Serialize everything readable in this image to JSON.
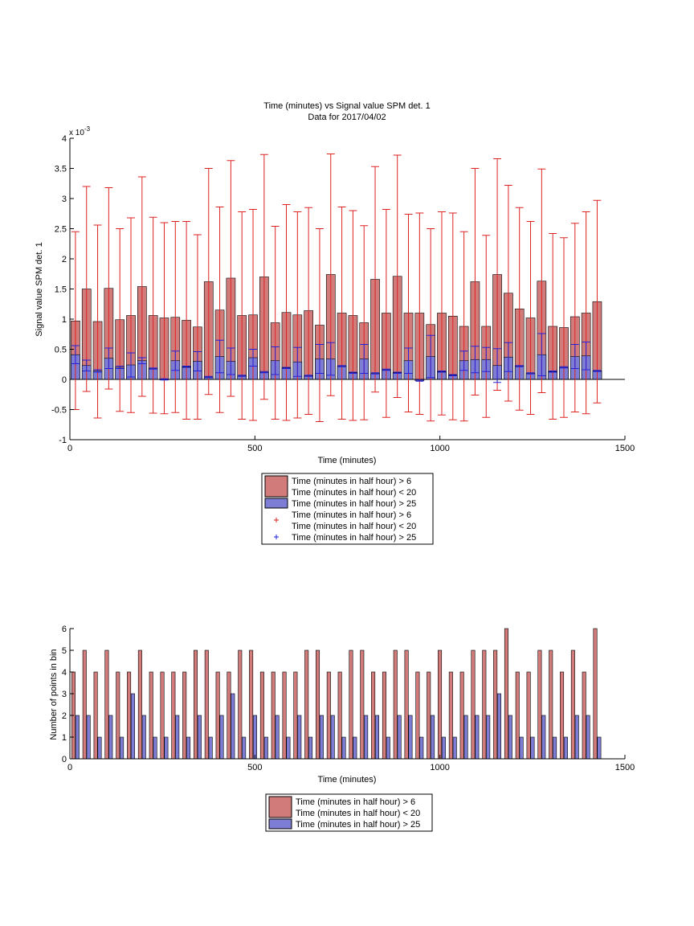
{
  "chart_data": [
    {
      "type": "bar",
      "title": "Time (minutes) vs Signal value SPM det. 1",
      "subtitle": "Data for 2017/04/02",
      "xlabel": "Time (minutes)",
      "ylabel": "Signal value SPM det. 1",
      "y_exponent_label": "x 10",
      "y_exponent_power": "-3",
      "xlim": [
        0,
        1500
      ],
      "ylim": [
        -0.001,
        0.004
      ],
      "xticks": [
        "0",
        "500",
        "1000",
        "1500"
      ],
      "yticks": [
        "-1",
        "-0.5",
        "0",
        "0.5",
        "1",
        "1.5",
        "2",
        "2.5",
        "3",
        "3.5",
        "4"
      ],
      "grid": false,
      "legend_position": "below",
      "x": [
        15,
        45,
        75,
        105,
        135,
        165,
        195,
        225,
        255,
        285,
        315,
        345,
        375,
        405,
        435,
        465,
        495,
        525,
        555,
        585,
        615,
        645,
        675,
        705,
        735,
        765,
        795,
        825,
        855,
        885,
        915,
        945,
        975,
        1005,
        1035,
        1065,
        1095,
        1125,
        1155,
        1185,
        1215,
        1245,
        1275,
        1305,
        1335,
        1365,
        1395,
        1425
      ],
      "series": [
        {
          "name": "Time (minutes in half hour) > 6\nTime (minutes in half hour) < 20",
          "color": "#d27b7b",
          "error_color": "#dd2222",
          "values": [
            0.00097,
            0.0015,
            0.00096,
            0.00151,
            0.00099,
            0.00106,
            0.00154,
            0.00106,
            0.00102,
            0.00103,
            0.00098,
            0.00087,
            0.00162,
            0.00115,
            0.00168,
            0.00106,
            0.00107,
            0.0017,
            0.00094,
            0.00111,
            0.00107,
            0.00114,
            0.0009,
            0.00174,
            0.0011,
            0.00106,
            0.00094,
            0.00166,
            0.0011,
            0.00171,
            0.0011,
            0.0011,
            0.00091,
            0.0011,
            0.00105,
            0.00088,
            0.00162,
            0.00088,
            0.00174,
            0.00143,
            0.00117,
            0.00102,
            0.00163,
            0.00088,
            0.00086,
            0.00104,
            0.0011,
            0.00129
          ],
          "error_upper": [
            0.00245,
            0.0032,
            0.00256,
            0.00318,
            0.0025,
            0.00268,
            0.00336,
            0.00269,
            0.0026,
            0.00262,
            0.00262,
            0.0024,
            0.0035,
            0.00286,
            0.00363,
            0.00278,
            0.00282,
            0.00373,
            0.00254,
            0.0029,
            0.00278,
            0.00285,
            0.0025,
            0.00374,
            0.00286,
            0.0028,
            0.00255,
            0.00353,
            0.00282,
            0.00372,
            0.00274,
            0.00276,
            0.0025,
            0.00278,
            0.00276,
            0.00245,
            0.0035,
            0.00239,
            0.00366,
            0.00322,
            0.00285,
            0.00262,
            0.00349,
            0.00242,
            0.00235,
            0.00259,
            0.00278,
            0.00297
          ],
          "error_lower": [
            -0.0005,
            -0.0002,
            -0.00064,
            -0.00016,
            -0.00053,
            -0.00055,
            -0.00028,
            -0.00056,
            -0.00057,
            -0.00055,
            -0.00066,
            -0.00066,
            -0.00025,
            -0.00055,
            -0.00028,
            -0.00066,
            -0.00068,
            -0.00033,
            -0.00066,
            -0.00068,
            -0.00064,
            -0.00058,
            -0.0007,
            -0.00027,
            -0.00066,
            -0.00068,
            -0.00067,
            -0.00021,
            -0.00063,
            -0.0003,
            -0.00054,
            -0.00058,
            -0.00069,
            -0.00059,
            -0.00067,
            -0.00069,
            -0.00026,
            -0.00063,
            -0.00018,
            -0.00036,
            -0.00051,
            -0.00058,
            -0.00022,
            -0.00066,
            -0.00063,
            -0.00054,
            -0.00057,
            -0.00039
          ]
        },
        {
          "name": "Time (minutes in half hour) > 25",
          "color": "#7d7dd6",
          "error_color": "#2222dd",
          "values": [
            0.00041,
            0.00023,
            0.00014,
            0.00035,
            0.0002,
            0.00024,
            0.00031,
            0.00018,
            0.0,
            0.00031,
            0.00021,
            0.0003,
            4e-05,
            0.00038,
            0.0003,
            6e-05,
            0.00036,
            0.00012,
            0.00031,
            0.00019,
            0.00029,
            6e-05,
            0.00034,
            0.00034,
            0.00022,
            0.00011,
            0.00034,
            0.0001,
            0.00016,
            0.00011,
            0.00031,
            -2e-05,
            0.00038,
            0.00013,
            7e-05,
            0.00031,
            0.00033,
            0.00033,
            0.00023,
            0.00037,
            0.00022,
            0.0001,
            0.00041,
            0.00013,
            0.0002,
            0.00038,
            0.00039,
            0.00014
          ],
          "error_upper": [
            0.00056,
            0.00032,
            0.00016,
            0.00052,
            0.00022,
            0.00044,
            0.00036,
            0.00019,
            1e-05,
            0.00047,
            0.00022,
            0.00046,
            5e-05,
            0.00065,
            0.00052,
            7e-05,
            0.0005,
            0.00013,
            0.00054,
            0.0002,
            0.00053,
            7e-05,
            0.00058,
            0.00061,
            0.00023,
            0.00012,
            0.00058,
            0.00011,
            0.00017,
            0.00012,
            0.00052,
            -1e-05,
            0.00073,
            0.00014,
            8e-05,
            0.00047,
            0.00055,
            0.00053,
            0.00051,
            0.00061,
            0.00023,
            0.00011,
            0.00076,
            0.00014,
            0.00021,
            0.00058,
            0.00062,
            0.00015
          ],
          "error_lower": [
            0.00026,
            0.00014,
            0.00012,
            0.00018,
            0.00018,
            4e-05,
            0.00026,
            0.00017,
            -1e-05,
            0.00015,
            0.0002,
            0.00014,
            3e-05,
            0.00011,
            8e-05,
            5e-05,
            0.00022,
            0.00011,
            8e-05,
            0.00018,
            5e-05,
            5e-05,
            0.0001,
            7e-05,
            0.00021,
            0.0001,
            0.0001,
            9e-05,
            0.00015,
            0.0001,
            0.0001,
            -3e-05,
            3e-05,
            0.00012,
            6e-05,
            0.00015,
            0.00011,
            0.00013,
            -5e-05,
            0.00013,
            0.00021,
            9e-05,
            6e-05,
            0.00012,
            0.00019,
            0.00018,
            0.00016,
            0.00013
          ]
        }
      ],
      "legend": [
        {
          "kind": "patch",
          "color": "#d27b7b",
          "lines": [
            "Time (minutes in half hour) > 6",
            "Time (minutes in half hour) < 20"
          ]
        },
        {
          "kind": "patch",
          "color": "#7d7dd6",
          "lines": [
            "Time (minutes in half hour) > 25"
          ]
        },
        {
          "kind": "marker",
          "color": "#dd2222",
          "lines": [
            "Time (minutes in half hour) > 6",
            "Time (minutes in half hour) < 20"
          ]
        },
        {
          "kind": "marker",
          "color": "#2222dd",
          "lines": [
            "Time (minutes in half hour) > 25"
          ]
        }
      ]
    },
    {
      "type": "bar",
      "xlabel": "Time (minutes)",
      "ylabel": "Number of points in bin",
      "xlim": [
        0,
        1500
      ],
      "ylim": [
        0,
        6
      ],
      "xticks": [
        "0",
        "500",
        "1000",
        "1500"
      ],
      "yticks": [
        "0",
        "1",
        "2",
        "3",
        "4",
        "5",
        "6"
      ],
      "grid": false,
      "legend_position": "below",
      "x": [
        15,
        45,
        75,
        105,
        135,
        165,
        195,
        225,
        255,
        285,
        315,
        345,
        375,
        405,
        435,
        465,
        495,
        525,
        555,
        585,
        615,
        645,
        675,
        705,
        735,
        765,
        795,
        825,
        855,
        885,
        915,
        945,
        975,
        1005,
        1035,
        1065,
        1095,
        1125,
        1155,
        1185,
        1215,
        1245,
        1275,
        1305,
        1335,
        1365,
        1395,
        1425
      ],
      "series": [
        {
          "name": "Time (minutes in half hour) > 6\nTime (minutes in half hour) < 20",
          "color": "#d27b7b",
          "values": [
            4,
            5,
            4,
            5,
            4,
            4,
            5,
            4,
            4,
            4,
            4,
            5,
            5,
            4,
            4,
            5,
            5,
            4,
            4,
            4,
            4,
            5,
            5,
            4,
            4,
            5,
            5,
            4,
            4,
            5,
            5,
            4,
            4,
            5,
            4,
            4,
            5,
            5,
            5,
            6,
            4,
            4,
            5,
            5,
            4,
            5,
            4,
            6
          ]
        },
        {
          "name": "Time (minutes in half hour) > 25",
          "color": "#7d7dd6",
          "values": [
            2,
            2,
            1,
            2,
            1,
            3,
            2,
            1,
            1,
            2,
            1,
            2,
            1,
            2,
            3,
            1,
            2,
            1,
            2,
            1,
            2,
            1,
            2,
            2,
            1,
            1,
            2,
            2,
            1,
            2,
            2,
            1,
            2,
            1,
            1,
            2,
            2,
            2,
            3,
            2,
            1,
            1,
            2,
            1,
            1,
            2,
            2,
            1
          ]
        }
      ],
      "legend": [
        {
          "kind": "patch",
          "color": "#d27b7b",
          "lines": [
            "Time (minutes in half hour) > 6",
            "Time (minutes in half hour) < 20"
          ]
        },
        {
          "kind": "patch",
          "color": "#7d7dd6",
          "lines": [
            "Time (minutes in half hour) > 25"
          ]
        }
      ]
    }
  ]
}
